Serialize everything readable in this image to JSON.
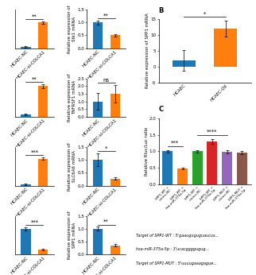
{
  "chart_data": [
    {
      "type": "bar",
      "categories": [
        "HCAEC-NC",
        "HCAEC-si-COLCA1"
      ],
      "values": [
        0.05,
        1.0
      ],
      "errors": [
        0.03,
        0.04
      ],
      "ylim": [
        0,
        1.5
      ],
      "yticks": [],
      "tick_labels": "x",
      "annotations": [
        {
          "text": "**",
          "span": [
            0,
            1
          ]
        }
      ]
    },
    {
      "type": "bar",
      "categories": [
        "HCAEC-NC",
        "HCAEC-si-COLCA1"
      ],
      "values": [
        1.0,
        0.5
      ],
      "errors": [
        0.08,
        0.05
      ],
      "ylim": [
        0,
        1.5
      ],
      "yticks": [
        0.0,
        0.5,
        1.0,
        1.5
      ],
      "ylabel": "Relative expression of\nStk1 mRNA",
      "annotations": [
        {
          "text": "**",
          "span": [
            0,
            1
          ]
        }
      ]
    },
    {
      "type": "bar",
      "categories": [
        "HCAEC-NC",
        "HCAEC-si-COLCA1"
      ],
      "values": [
        0.15,
        2.0
      ],
      "errors": [
        0.04,
        0.12
      ],
      "ylim": [
        0,
        2.5
      ],
      "yticks": [],
      "tick_labels": "x",
      "annotations": [
        {
          "text": "**",
          "span": [
            0,
            1
          ]
        }
      ]
    },
    {
      "type": "bar",
      "categories": [
        "HCAEC-NC",
        "HCAEC-si-COLCA1"
      ],
      "values": [
        1.0,
        1.5
      ],
      "errors": [
        0.55,
        0.55
      ],
      "ylim": [
        0,
        2.5
      ],
      "yticks": [
        0.0,
        0.5,
        1.0,
        1.5,
        2.0,
        2.5
      ],
      "ylabel": "Relative expression of\nTNFRSF1 mRNA",
      "annotations": [
        {
          "text": "ns",
          "span": [
            0,
            1
          ]
        }
      ]
    },
    {
      "type": "bar",
      "categories": [
        "HCAEC-NC",
        "HCAEC-si-COLCA1"
      ],
      "values": [
        0.05,
        1.05
      ],
      "errors": [
        0.02,
        0.05
      ],
      "ylim": [
        0,
        1.5
      ],
      "yticks": [],
      "tick_labels": "x",
      "annotations": [
        {
          "text": "***",
          "span": [
            0,
            1
          ]
        }
      ]
    },
    {
      "type": "bar",
      "categories": [
        "HCAEC-NC",
        "HCAEC-si-COLCA1"
      ],
      "values": [
        1.0,
        0.28
      ],
      "errors": [
        0.25,
        0.04
      ],
      "ylim": [
        0,
        1.5
      ],
      "yticks": [
        0.0,
        0.5,
        1.0,
        1.5
      ],
      "ylabel": "Relative expression of\nSLC6A6 mRNA",
      "annotations": [
        {
          "text": "*",
          "span": [
            0,
            1
          ]
        }
      ]
    },
    {
      "type": "bar",
      "categories": [
        "HCAEC-NC",
        "HCAEC-si-COLCA1"
      ],
      "values": [
        1.0,
        0.18
      ],
      "errors": [
        0.06,
        0.03
      ],
      "ylim": [
        0,
        1.5
      ],
      "yticks": [],
      "tick_labels": "x",
      "annotations": [
        {
          "text": "***",
          "span": [
            0,
            1
          ]
        }
      ]
    },
    {
      "type": "bar",
      "categories": [
        "HCAEC-NC",
        "HCAEC-si-COLCA1"
      ],
      "values": [
        1.0,
        0.35
      ],
      "errors": [
        0.07,
        0.04
      ],
      "ylim": [
        0,
        1.5
      ],
      "yticks": [
        0.0,
        0.5,
        1.0,
        1.5
      ],
      "ylabel": "Relative expression of\nSPP1 mRNA",
      "annotations": [
        {
          "text": "**",
          "span": [
            0,
            1
          ]
        }
      ]
    },
    {
      "type": "bar",
      "title": "B",
      "categories": [
        "HCAEC",
        "HCAEC-OX"
      ],
      "values": [
        2.0,
        12.0
      ],
      "errors": [
        3.2,
        2.5
      ],
      "ylim": [
        -5,
        15
      ],
      "yticks": [
        -5,
        0,
        5,
        10,
        15
      ],
      "ylabel": "Relative expression of SPP1 mRNA",
      "annotations": [
        {
          "text": "*",
          "span": [
            0,
            1
          ]
        }
      ]
    },
    {
      "type": "bar",
      "title": "C",
      "categories": [
        "SPP1-WT +\nmimic-NC",
        "SPP1-WT +\nhsa-miR-375a-5p",
        "SPP1-WT +\nmimic-NC",
        "SPP1-WT +\nhsa-miR-375a-5p",
        "SPP1-MUT +\nmimic-NC",
        "SPP1-MUT +\nhsa-miR-375a-5p"
      ],
      "values": [
        1.0,
        0.48,
        1.0,
        1.3,
        0.98,
        0.95
      ],
      "errors": [
        0.04,
        0.03,
        0.04,
        0.07,
        0.05,
        0.05
      ],
      "ylim": [
        0,
        2.0
      ],
      "yticks": [
        0.0,
        0.5,
        1.0,
        1.5,
        2.0
      ],
      "ylabel": "Relative Rluc/Luc ratio",
      "annotations": [
        {
          "text": "***",
          "span": [
            0,
            1
          ]
        },
        {
          "text": "****",
          "span": [
            2,
            4
          ]
        }
      ]
    },
    {
      "type": "text",
      "annotations": [
        "Target of SPP1-WT : 5'gaauguguguaucus...",
        "hsa-miR-375a-5p : 3'ucacggggugug...",
        "Target of SPP1-MUT : 5'uuuugaaagague..."
      ]
    }
  ]
}
